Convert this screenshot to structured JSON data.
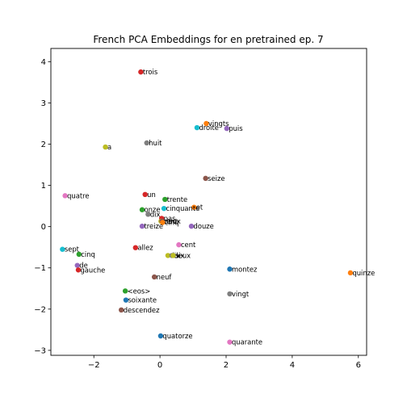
{
  "chart_data": {
    "type": "scatter",
    "title": "French PCA Embeddings for en pretrained ep. 7",
    "xlabel": "",
    "ylabel": "",
    "xlim": [
      -3.3,
      6.25
    ],
    "ylim": [
      -3.12,
      4.32
    ],
    "x_ticks": [
      -2,
      0,
      2,
      4,
      6
    ],
    "y_ticks": [
      -3,
      -2,
      -1,
      0,
      1,
      2,
      3,
      4
    ],
    "x_tick_labels": [
      "−2",
      "0",
      "2",
      "4",
      "6"
    ],
    "y_tick_labels": [
      "−3",
      "−2",
      "−1",
      "0",
      "1",
      "2",
      "3",
      "4"
    ],
    "grid": false,
    "legend": "none",
    "palette": [
      "#1f77b4",
      "#ff7f0e",
      "#2ca02c",
      "#d62728",
      "#9467bd",
      "#8c564b",
      "#e377c2",
      "#7f7f7f",
      "#bcbd22",
      "#17becf"
    ],
    "points": [
      {
        "label": "trois",
        "x": -0.58,
        "y": 3.75,
        "color": "#d62728"
      },
      {
        "label": "vingts",
        "x": 1.4,
        "y": 2.5,
        "color": "#ff7f0e"
      },
      {
        "label": "droite",
        "x": 1.12,
        "y": 2.4,
        "color": "#17becf"
      },
      {
        "label": "puis",
        "x": 2.02,
        "y": 2.38,
        "color": "#9467bd"
      },
      {
        "label": "huit",
        "x": -0.4,
        "y": 2.03,
        "color": "#7f7f7f"
      },
      {
        "label": "a",
        "x": -1.65,
        "y": 1.93,
        "color": "#bcbd22"
      },
      {
        "label": "seize",
        "x": 1.38,
        "y": 1.17,
        "color": "#8c564b"
      },
      {
        "label": "un",
        "x": -0.45,
        "y": 0.78,
        "color": "#d62728"
      },
      {
        "label": "quatre",
        "x": -2.87,
        "y": 0.75,
        "color": "#e377c2"
      },
      {
        "label": "trente",
        "x": 0.15,
        "y": 0.66,
        "color": "#2ca02c"
      },
      {
        "label": "et",
        "x": 1.03,
        "y": 0.47,
        "color": "#ff7f0e"
      },
      {
        "label": "onze",
        "x": -0.54,
        "y": 0.41,
        "color": "#2ca02c"
      },
      {
        "label": "cinquante",
        "x": 0.12,
        "y": 0.44,
        "color": "#17becf"
      },
      {
        "label": "dix",
        "x": -0.36,
        "y": 0.3,
        "color": "#7f7f7f"
      },
      {
        "label": "pas",
        "x": 0.05,
        "y": 0.2,
        "color": "#d62728"
      },
      {
        "label": "cent",
        "x": 0.03,
        "y": 0.13,
        "color": "#bcbd22"
      },
      {
        "label": "deux",
        "x": 0.06,
        "y": 0.13,
        "color": "#8c564b"
      },
      {
        "label": "cinq",
        "x": 0.08,
        "y": 0.1,
        "color": "#ff7f0e"
      },
      {
        "label": "treize",
        "x": -0.54,
        "y": 0.01,
        "color": "#9467bd"
      },
      {
        "label": "douze",
        "x": 0.95,
        "y": 0.01,
        "color": "#9467bd"
      },
      {
        "label": "cent",
        "x": 0.57,
        "y": -0.44,
        "color": "#e377c2"
      },
      {
        "label": "allez",
        "x": -0.74,
        "y": -0.51,
        "color": "#d62728"
      },
      {
        "label": "sept",
        "x": -2.95,
        "y": -0.55,
        "color": "#17becf"
      },
      {
        "label": "cinq",
        "x": -2.45,
        "y": -0.67,
        "color": "#2ca02c"
      },
      {
        "label": "dix",
        "x": 0.24,
        "y": -0.7,
        "color": "#bcbd22"
      },
      {
        "label": "deux",
        "x": 0.36,
        "y": -0.7,
        "color": "#7f7f7f"
      },
      {
        "label": "six",
        "x": 0.4,
        "y": -0.7,
        "color": "#bcbd22"
      },
      {
        "label": "de",
        "x": -2.5,
        "y": -0.94,
        "color": "#9467bd"
      },
      {
        "label": "montez",
        "x": 2.11,
        "y": -1.03,
        "color": "#1f77b4"
      },
      {
        "label": "gauche",
        "x": -2.47,
        "y": -1.05,
        "color": "#d62728"
      },
      {
        "label": "quinze",
        "x": 5.76,
        "y": -1.12,
        "color": "#ff7f0e"
      },
      {
        "label": "neuf",
        "x": -0.17,
        "y": -1.22,
        "color": "#8c564b"
      },
      {
        "label": "<eos>",
        "x": -1.05,
        "y": -1.56,
        "color": "#2ca02c"
      },
      {
        "label": "vingt",
        "x": 2.11,
        "y": -1.63,
        "color": "#7f7f7f"
      },
      {
        "label": "soixante",
        "x": -1.03,
        "y": -1.78,
        "color": "#1f77b4"
      },
      {
        "label": "descendez",
        "x": -1.17,
        "y": -2.02,
        "color": "#8c564b"
      },
      {
        "label": "quatorze",
        "x": 0.02,
        "y": -2.65,
        "color": "#1f77b4"
      },
      {
        "label": "quarante",
        "x": 2.11,
        "y": -2.8,
        "color": "#e377c2"
      }
    ]
  }
}
